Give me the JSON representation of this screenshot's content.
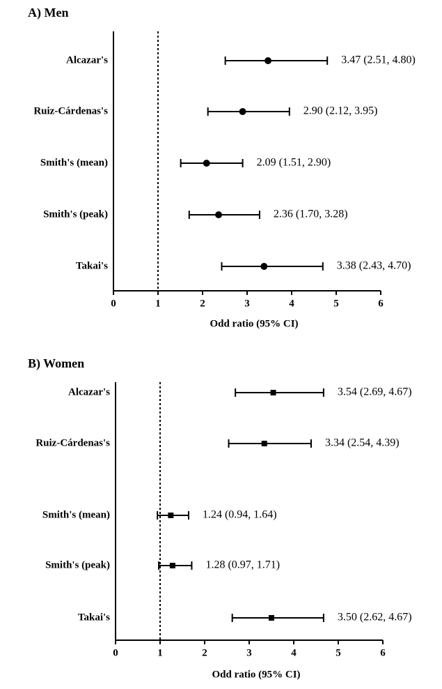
{
  "chart_data": [
    {
      "type": "forest",
      "title": "A) Men",
      "xlabel": "Odd ratio (95% CI)",
      "categories": [
        "Alcazar's",
        "Ruiz-Cárdenas's",
        "Smith's (mean)",
        "Smith's (peak)",
        "Takai's"
      ],
      "values": [
        3.47,
        2.9,
        2.09,
        2.36,
        3.38
      ],
      "lower": [
        2.51,
        2.12,
        1.51,
        1.7,
        2.43
      ],
      "upper": [
        4.8,
        3.95,
        2.9,
        3.28,
        4.7
      ],
      "value_labels": [
        "3.47 (2.51, 4.80)",
        "2.90 (2.12, 3.95)",
        "2.09 (1.51, 2.90)",
        "2.36 (1.70, 3.28)",
        "3.38 (2.43, 4.70)"
      ],
      "xlim": [
        0,
        6
      ],
      "xticks": [
        0,
        1,
        2,
        3,
        4,
        5,
        6
      ],
      "reference_line": 1,
      "marker": "circle",
      "color": "#000000"
    },
    {
      "type": "forest",
      "title": "B) Women",
      "xlabel": "Odd ratio (95% CI)",
      "categories": [
        "Alcazar's",
        "Ruiz-Cárdenas's",
        "Smith's (mean)",
        "Smith's (peak)",
        "Takai's"
      ],
      "values": [
        3.54,
        3.34,
        1.24,
        1.28,
        3.5
      ],
      "lower": [
        2.69,
        2.54,
        0.94,
        0.97,
        2.62
      ],
      "upper": [
        4.67,
        4.39,
        1.64,
        1.71,
        4.67
      ],
      "value_labels": [
        "3.54 (2.69, 4.67)",
        "3.34 (2.54, 4.39)",
        "1.24 (0.94, 1.64)",
        "1.28 (0.97, 1.71)",
        "3.50 (2.62, 4.67)"
      ],
      "xlim": [
        0,
        6
      ],
      "xticks": [
        0,
        1,
        2,
        3,
        4,
        5,
        6
      ],
      "reference_line": 1,
      "marker": "square",
      "color": "#000000"
    }
  ]
}
